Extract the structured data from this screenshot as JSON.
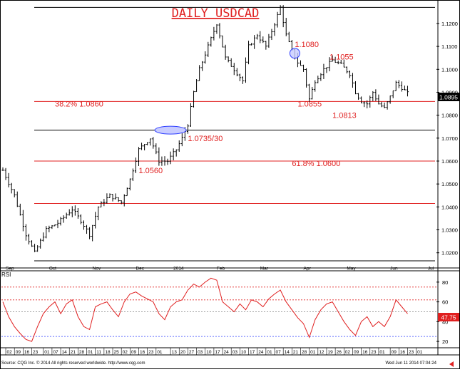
{
  "chart_data": [
    {
      "type": "bar",
      "subtype": "ohlc",
      "title": "DAILY USDCAD",
      "ylim": [
        1.014,
        1.129
      ],
      "y_ticks": [
        "1.0200",
        "1.0300",
        "1.0400",
        "1.0500",
        "1.0600",
        "1.0700",
        "1.0800",
        "1.0900",
        "1.1000",
        "1.1100",
        "1.1200"
      ],
      "last_price": "1.0895",
      "grid": false,
      "legend": "none",
      "price_path": [
        {
          "day": 0,
          "close": 1.056
        },
        {
          "day": 4,
          "close": 1.045
        },
        {
          "day": 8,
          "close": 1.028
        },
        {
          "day": 11,
          "close": 1.02
        },
        {
          "day": 15,
          "close": 1.03
        },
        {
          "day": 19,
          "close": 1.033
        },
        {
          "day": 24,
          "close": 1.039
        },
        {
          "day": 27,
          "close": 1.034
        },
        {
          "day": 30,
          "close": 1.028
        },
        {
          "day": 33,
          "close": 1.04
        },
        {
          "day": 37,
          "close": 1.045
        },
        {
          "day": 41,
          "close": 1.042
        },
        {
          "day": 44,
          "close": 1.052
        },
        {
          "day": 47,
          "close": 1.065
        },
        {
          "day": 51,
          "close": 1.07
        },
        {
          "day": 54,
          "close": 1.06
        },
        {
          "day": 57,
          "close": 1.06
        },
        {
          "day": 60,
          "close": 1.065
        },
        {
          "day": 62,
          "close": 1.07
        },
        {
          "day": 64,
          "close": 1.076
        },
        {
          "day": 66,
          "close": 1.09
        },
        {
          "day": 68,
          "close": 1.1
        },
        {
          "day": 71,
          "close": 1.11
        },
        {
          "day": 74,
          "close": 1.12
        },
        {
          "day": 77,
          "close": 1.105
        },
        {
          "day": 80,
          "close": 1.1
        },
        {
          "day": 83,
          "close": 1.095
        },
        {
          "day": 85,
          "close": 1.11
        },
        {
          "day": 88,
          "close": 1.115
        },
        {
          "day": 91,
          "close": 1.11
        },
        {
          "day": 94,
          "close": 1.12
        },
        {
          "day": 96,
          "close": 1.127
        },
        {
          "day": 98,
          "close": 1.115
        },
        {
          "day": 100,
          "close": 1.108
        },
        {
          "day": 102,
          "close": 1.103
        },
        {
          "day": 104,
          "close": 1.1
        },
        {
          "day": 106,
          "close": 1.087
        },
        {
          "day": 108,
          "close": 1.095
        },
        {
          "day": 111,
          "close": 1.1
        },
        {
          "day": 114,
          "close": 1.104
        },
        {
          "day": 117,
          "close": 1.102
        },
        {
          "day": 120,
          "close": 1.098
        },
        {
          "day": 122,
          "close": 1.09
        },
        {
          "day": 124,
          "close": 1.086
        },
        {
          "day": 126,
          "close": 1.085
        },
        {
          "day": 128,
          "close": 1.09
        },
        {
          "day": 130,
          "close": 1.085
        },
        {
          "day": 132,
          "close": 1.083
        },
        {
          "day": 134,
          "close": 1.088
        },
        {
          "day": 136,
          "close": 1.094
        },
        {
          "day": 138,
          "close": 1.092
        },
        {
          "day": 140,
          "close": 1.0895
        }
      ],
      "horizontal_levels": [
        {
          "value": 1.127,
          "color": "#000000"
        },
        {
          "value": 1.086,
          "color": "#e02020"
        },
        {
          "value": 1.0735,
          "color": "#000000"
        },
        {
          "value": 1.06,
          "color": "#e02020"
        },
        {
          "value": 1.0415,
          "color": "#e02020"
        },
        {
          "value": 1.0165,
          "color": "#000000"
        }
      ],
      "annotations": [
        {
          "text": "1.1080",
          "x_day": 101,
          "y": 1.111
        },
        {
          "text": "1.1055",
          "x_day": 113,
          "y": 1.1055
        },
        {
          "text": "38.2% 1.0860",
          "x_day": 18,
          "y": 1.085
        },
        {
          "text": "1.0855",
          "x_day": 102,
          "y": 1.085
        },
        {
          "text": "1.0813",
          "x_day": 114,
          "y": 1.08
        },
        {
          "text": "1.0735/30",
          "x_day": 64,
          "y": 1.07
        },
        {
          "text": "1.0560",
          "x_day": 47,
          "y": 1.056
        },
        {
          "text": "61.8% 1.0600",
          "x_day": 100,
          "y": 1.059
        }
      ],
      "highlights": [
        {
          "x_day": 58,
          "y": 1.0735,
          "shape": "ellipse"
        },
        {
          "x_day": 101,
          "y": 1.107,
          "shape": "circle"
        }
      ]
    },
    {
      "type": "line",
      "title": "RSI",
      "ylim": [
        15,
        90
      ],
      "y_ticks": [
        "20",
        "40",
        "60",
        "80"
      ],
      "last_value": "47.75",
      "levels": [
        {
          "value": 75,
          "color": "#e02020",
          "style": "dashed"
        },
        {
          "value": 62,
          "color": "#e02020",
          "style": "dashed"
        },
        {
          "value": 50,
          "color": "#808080",
          "style": "dashed"
        },
        {
          "value": 25,
          "color": "#3040ff",
          "style": "dashed"
        }
      ],
      "series": [
        {
          "color": "#e02020",
          "points": [
            {
              "day": 0,
              "value": 60
            },
            {
              "day": 2,
              "value": 45
            },
            {
              "day": 4,
              "value": 35
            },
            {
              "day": 6,
              "value": 28
            },
            {
              "day": 8,
              "value": 22
            },
            {
              "day": 10,
              "value": 20
            },
            {
              "day": 12,
              "value": 35
            },
            {
              "day": 14,
              "value": 48
            },
            {
              "day": 16,
              "value": 55
            },
            {
              "day": 18,
              "value": 60
            },
            {
              "day": 20,
              "value": 48
            },
            {
              "day": 22,
              "value": 58
            },
            {
              "day": 24,
              "value": 62
            },
            {
              "day": 26,
              "value": 45
            },
            {
              "day": 28,
              "value": 35
            },
            {
              "day": 30,
              "value": 32
            },
            {
              "day": 32,
              "value": 55
            },
            {
              "day": 34,
              "value": 58
            },
            {
              "day": 36,
              "value": 60
            },
            {
              "day": 38,
              "value": 52
            },
            {
              "day": 40,
              "value": 45
            },
            {
              "day": 42,
              "value": 60
            },
            {
              "day": 44,
              "value": 68
            },
            {
              "day": 46,
              "value": 70
            },
            {
              "day": 48,
              "value": 66
            },
            {
              "day": 50,
              "value": 63
            },
            {
              "day": 52,
              "value": 60
            },
            {
              "day": 54,
              "value": 48
            },
            {
              "day": 56,
              "value": 42
            },
            {
              "day": 58,
              "value": 55
            },
            {
              "day": 60,
              "value": 60
            },
            {
              "day": 62,
              "value": 62
            },
            {
              "day": 64,
              "value": 72
            },
            {
              "day": 66,
              "value": 78
            },
            {
              "day": 68,
              "value": 75
            },
            {
              "day": 70,
              "value": 80
            },
            {
              "day": 72,
              "value": 84
            },
            {
              "day": 74,
              "value": 82
            },
            {
              "day": 76,
              "value": 60
            },
            {
              "day": 78,
              "value": 55
            },
            {
              "day": 80,
              "value": 50
            },
            {
              "day": 82,
              "value": 58
            },
            {
              "day": 84,
              "value": 52
            },
            {
              "day": 86,
              "value": 62
            },
            {
              "day": 88,
              "value": 60
            },
            {
              "day": 90,
              "value": 55
            },
            {
              "day": 92,
              "value": 63
            },
            {
              "day": 94,
              "value": 68
            },
            {
              "day": 96,
              "value": 72
            },
            {
              "day": 98,
              "value": 60
            },
            {
              "day": 100,
              "value": 52
            },
            {
              "day": 102,
              "value": 44
            },
            {
              "day": 104,
              "value": 38
            },
            {
              "day": 106,
              "value": 24
            },
            {
              "day": 108,
              "value": 42
            },
            {
              "day": 110,
              "value": 52
            },
            {
              "day": 112,
              "value": 58
            },
            {
              "day": 114,
              "value": 60
            },
            {
              "day": 116,
              "value": 50
            },
            {
              "day": 118,
              "value": 40
            },
            {
              "day": 120,
              "value": 32
            },
            {
              "day": 122,
              "value": 26
            },
            {
              "day": 124,
              "value": 40
            },
            {
              "day": 126,
              "value": 45
            },
            {
              "day": 128,
              "value": 35
            },
            {
              "day": 130,
              "value": 40
            },
            {
              "day": 132,
              "value": 35
            },
            {
              "day": 134,
              "value": 45
            },
            {
              "day": 136,
              "value": 62
            },
            {
              "day": 138,
              "value": 55
            },
            {
              "day": 140,
              "value": 48
            }
          ]
        }
      ]
    }
  ],
  "x_axis": {
    "day_max": 150,
    "ticks": [
      {
        "day": 1,
        "label": "02"
      },
      {
        "day": 4,
        "label": "09"
      },
      {
        "day": 7,
        "label": "16"
      },
      {
        "day": 10,
        "label": "23"
      },
      {
        "day": 14,
        "label": "01"
      },
      {
        "day": 17,
        "label": "07"
      },
      {
        "day": 20,
        "label": "14"
      },
      {
        "day": 23,
        "label": "21"
      },
      {
        "day": 26,
        "label": "28"
      },
      {
        "day": 29,
        "label": "01"
      },
      {
        "day": 32,
        "label": "11"
      },
      {
        "day": 35,
        "label": "18"
      },
      {
        "day": 38,
        "label": "25"
      },
      {
        "day": 41,
        "label": "02"
      },
      {
        "day": 44,
        "label": "09"
      },
      {
        "day": 47,
        "label": "16"
      },
      {
        "day": 50,
        "label": "23"
      },
      {
        "day": 53,
        "label": "01"
      },
      {
        "day": 58,
        "label": "13"
      },
      {
        "day": 61,
        "label": "20"
      },
      {
        "day": 64,
        "label": "27"
      },
      {
        "day": 67,
        "label": "03"
      },
      {
        "day": 70,
        "label": "10"
      },
      {
        "day": 73,
        "label": "17"
      },
      {
        "day": 76,
        "label": "24"
      },
      {
        "day": 79,
        "label": "03"
      },
      {
        "day": 82,
        "label": "10"
      },
      {
        "day": 85,
        "label": "17"
      },
      {
        "day": 88,
        "label": "24"
      },
      {
        "day": 91,
        "label": "01"
      },
      {
        "day": 94,
        "label": "07"
      },
      {
        "day": 97,
        "label": "14"
      },
      {
        "day": 100,
        "label": "21"
      },
      {
        "day": 103,
        "label": "28"
      },
      {
        "day": 106,
        "label": "01"
      },
      {
        "day": 109,
        "label": "12"
      },
      {
        "day": 112,
        "label": "19"
      },
      {
        "day": 115,
        "label": "26"
      },
      {
        "day": 118,
        "label": "02"
      },
      {
        "day": 121,
        "label": "09"
      },
      {
        "day": 124,
        "label": "16"
      },
      {
        "day": 127,
        "label": "23"
      },
      {
        "day": 130,
        "label": "01"
      },
      {
        "day": 134,
        "label": "09"
      },
      {
        "day": 137,
        "label": "16"
      },
      {
        "day": 140,
        "label": "23"
      },
      {
        "day": 143,
        "label": "01"
      }
    ],
    "months": [
      {
        "day": 1,
        "label": "Sep"
      },
      {
        "day": 16,
        "label": "Oct"
      },
      {
        "day": 31,
        "label": "Nov"
      },
      {
        "day": 46,
        "label": "Dec"
      },
      {
        "day": 59,
        "label": "2014"
      },
      {
        "day": 74,
        "label": "Feb"
      },
      {
        "day": 89,
        "label": "Mar"
      },
      {
        "day": 104,
        "label": "Apr"
      },
      {
        "day": 119,
        "label": "May"
      },
      {
        "day": 134,
        "label": "Jun"
      },
      {
        "day": 147,
        "label": "Jul"
      }
    ]
  },
  "footer": {
    "source": "Source: CQG Inc. © 2014 All rights reserved worldwide. http://www.cqg.com",
    "timestamp": "Wed Jun 11 2014 07:04:24"
  },
  "colors": {
    "price_bars": "#000000",
    "label_red": "#e02020",
    "highlight_blue": "#3040ff",
    "highlight_fill": "#c8ccff"
  }
}
